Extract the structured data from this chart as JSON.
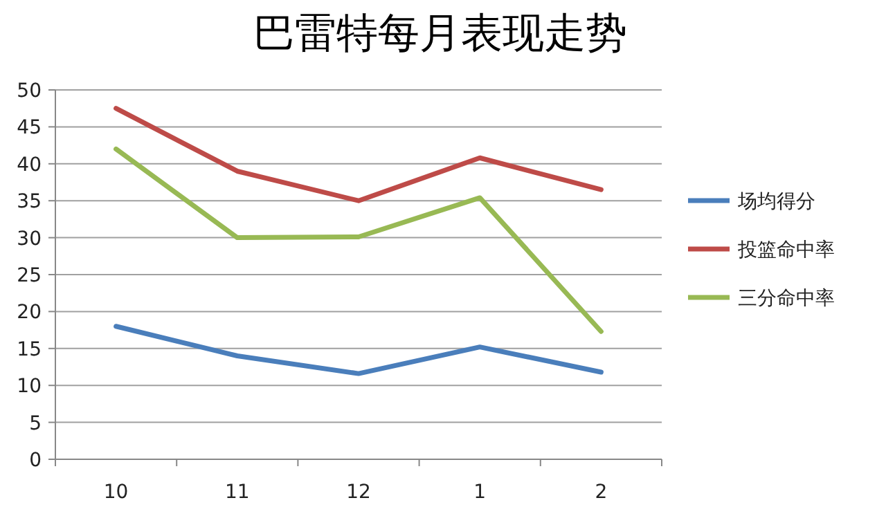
{
  "chart_data": {
    "type": "line",
    "title": "巴雷特每月表现走势",
    "categories": [
      "10",
      "11",
      "12",
      "1",
      "2"
    ],
    "series": [
      {
        "name": "场均得分",
        "color": "#4a7ebb",
        "values": [
          18,
          14,
          11.6,
          15.2,
          11.8
        ]
      },
      {
        "name": "投篮命中率",
        "color": "#be4b48",
        "values": [
          47.5,
          39,
          35,
          40.8,
          36.5
        ]
      },
      {
        "name": "三分命中率",
        "color": "#98b954",
        "values": [
          42,
          30,
          30.1,
          35.4,
          17.3
        ]
      }
    ],
    "ylim": [
      0,
      50
    ],
    "yticks": [
      0,
      5,
      10,
      15,
      20,
      25,
      30,
      35,
      40,
      45,
      50
    ],
    "grid": "y",
    "legend": "right",
    "marker": "none",
    "line_style": "solid"
  }
}
